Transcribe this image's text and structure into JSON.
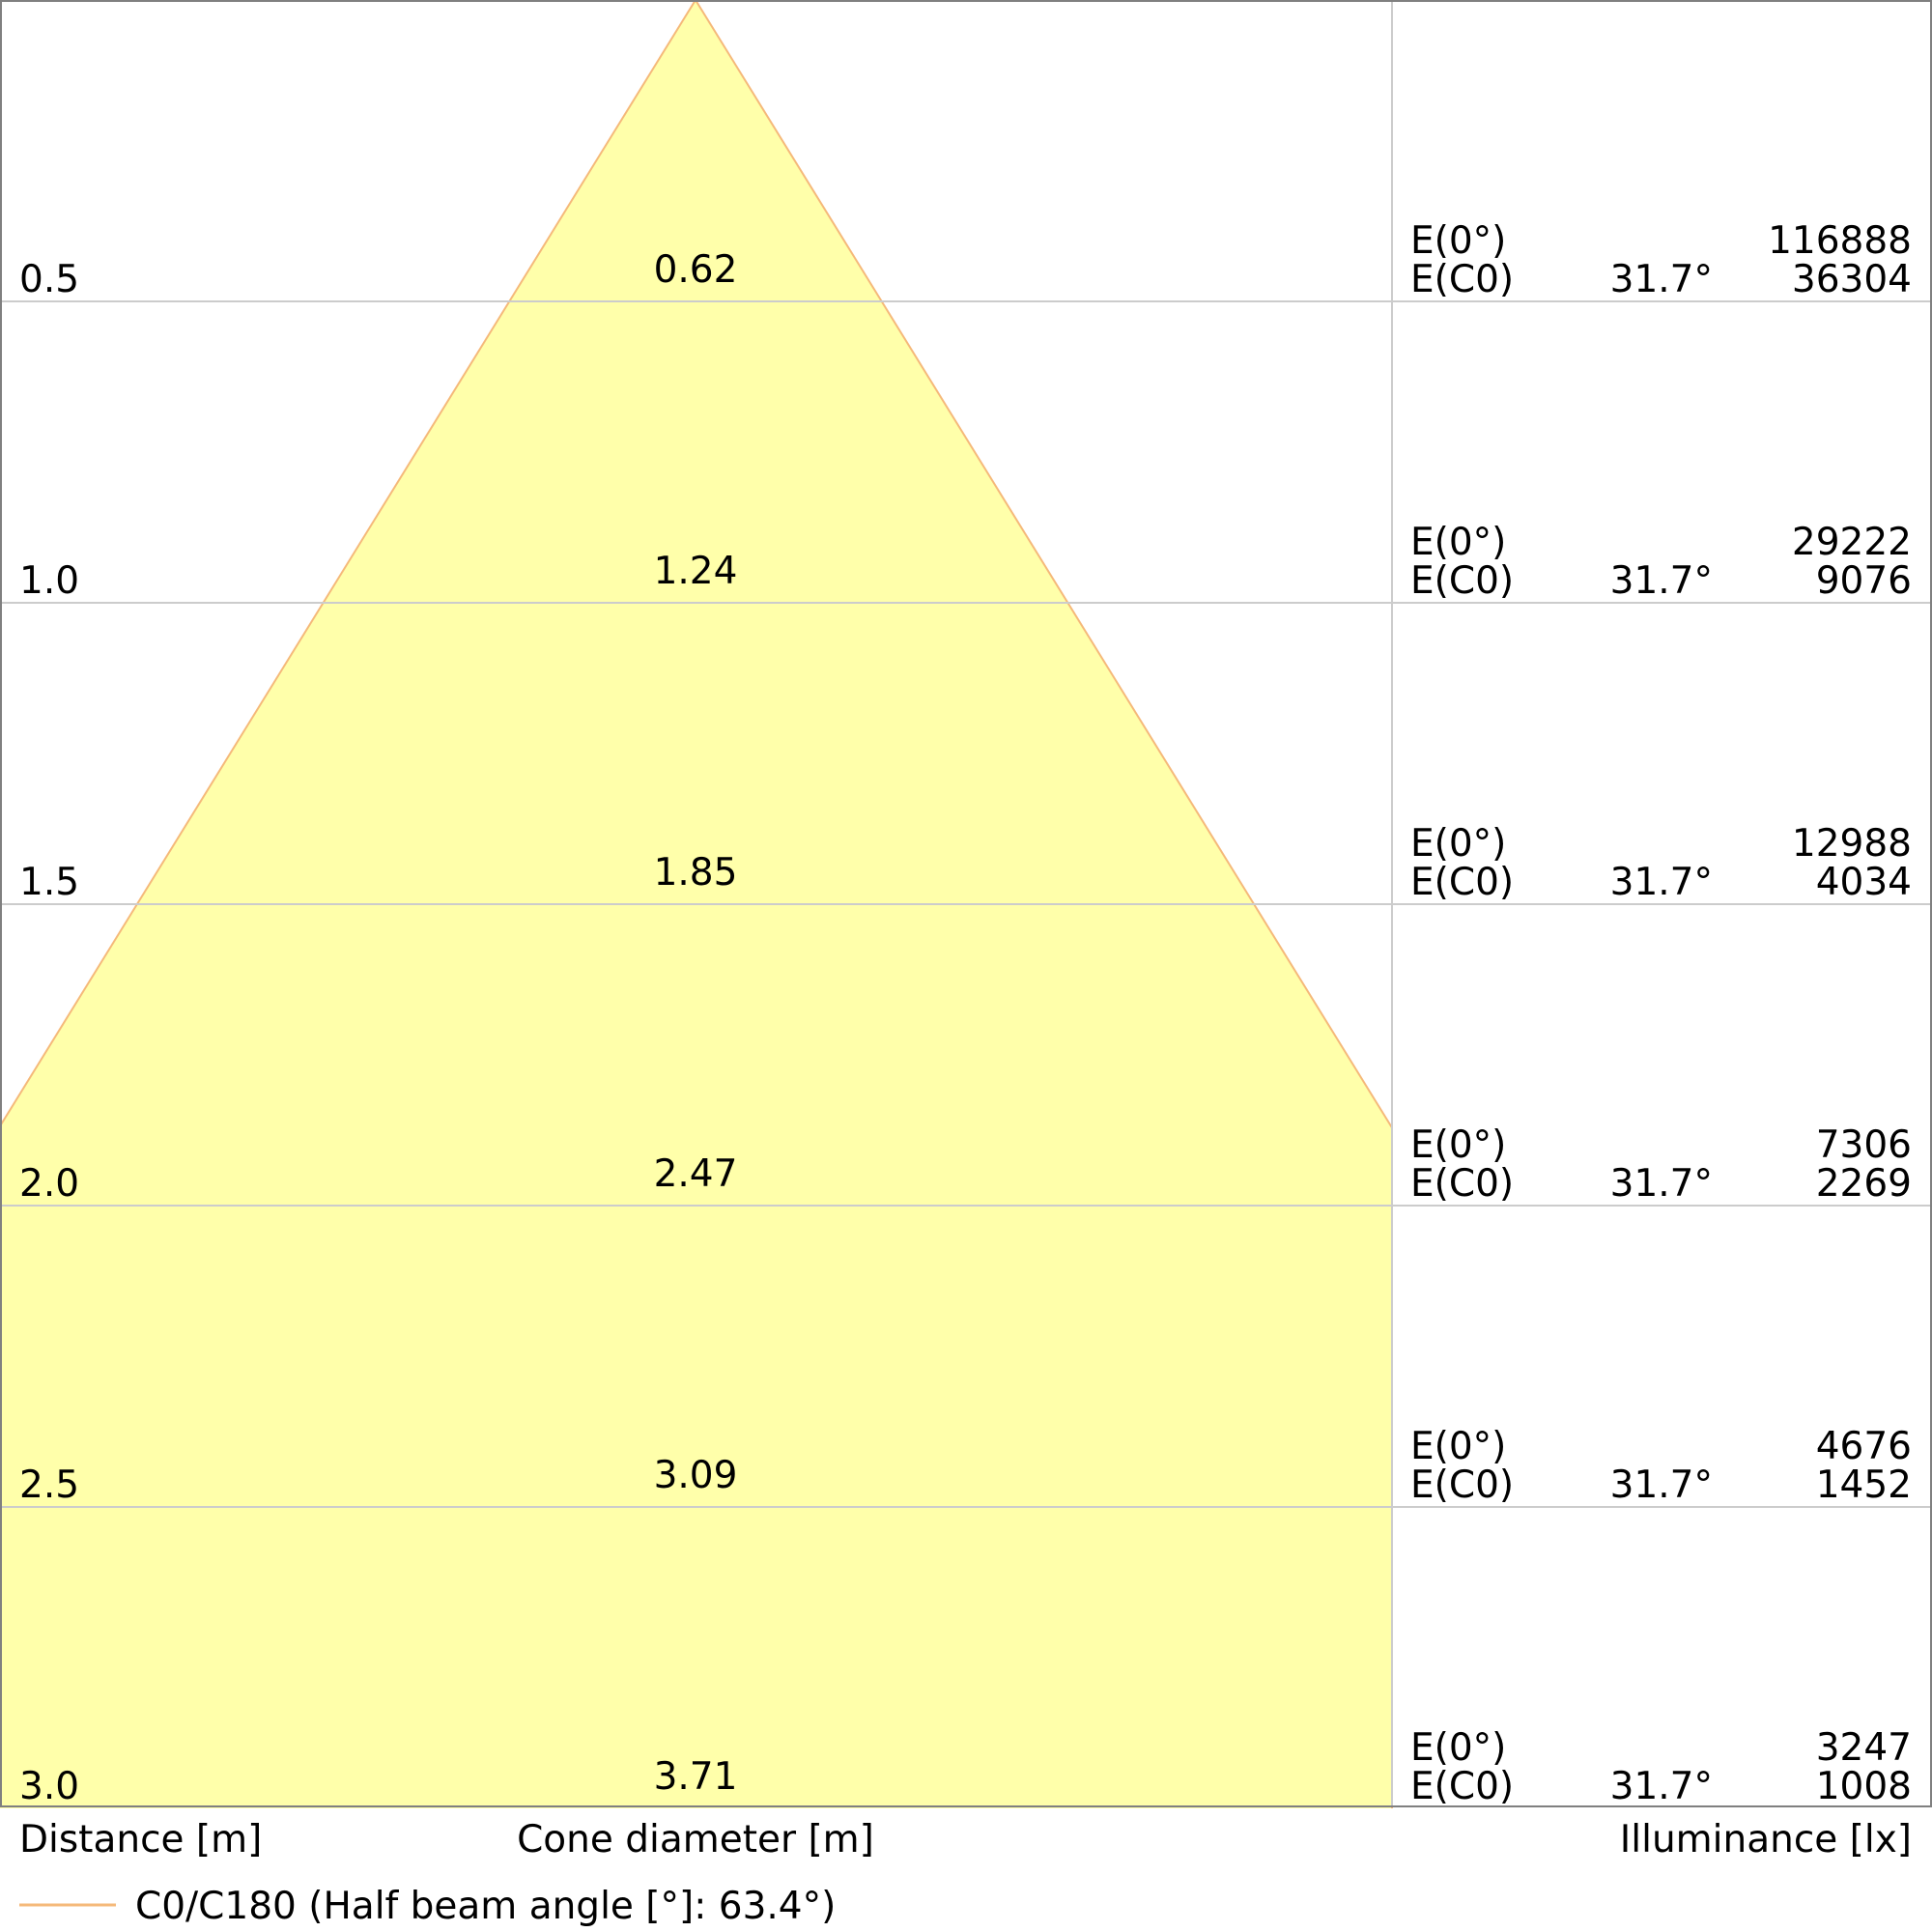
{
  "chart_data": {
    "type": "cone_diagram",
    "distance_label": "Distance [m]",
    "diameter_label": "Cone diameter [m]",
    "illuminance_label": "Illuminance [lx]",
    "legend": {
      "label": "C0/C180 (Half beam angle [°]: 63.4°)"
    },
    "half_beam_angle": 63.4,
    "row_label_center": "E(0°)",
    "row_label_c0": "E(C0)",
    "rows": [
      {
        "distance": "0.5",
        "diameter": "0.62",
        "e_center": "116888",
        "c0_angle": "31.7°",
        "e_c0": "36304"
      },
      {
        "distance": "1.0",
        "diameter": "1.24",
        "e_center": "29222",
        "c0_angle": "31.7°",
        "e_c0": "9076"
      },
      {
        "distance": "1.5",
        "diameter": "1.85",
        "e_center": "12988",
        "c0_angle": "31.7°",
        "e_c0": "4034"
      },
      {
        "distance": "2.0",
        "diameter": "2.47",
        "e_center": "7306",
        "c0_angle": "31.7°",
        "e_c0": "2269"
      },
      {
        "distance": "2.5",
        "diameter": "3.09",
        "e_center": "4676",
        "c0_angle": "31.7°",
        "e_c0": "1452"
      },
      {
        "distance": "3.0",
        "diameter": "3.71",
        "e_center": "3247",
        "c0_angle": "31.7°",
        "e_c0": "1008"
      }
    ],
    "colors": {
      "cone_fill": "#ffffaa",
      "cone_stroke": "#f5b97a",
      "grid": "#cccccc",
      "frame": "#808080",
      "text": "#000000"
    }
  }
}
